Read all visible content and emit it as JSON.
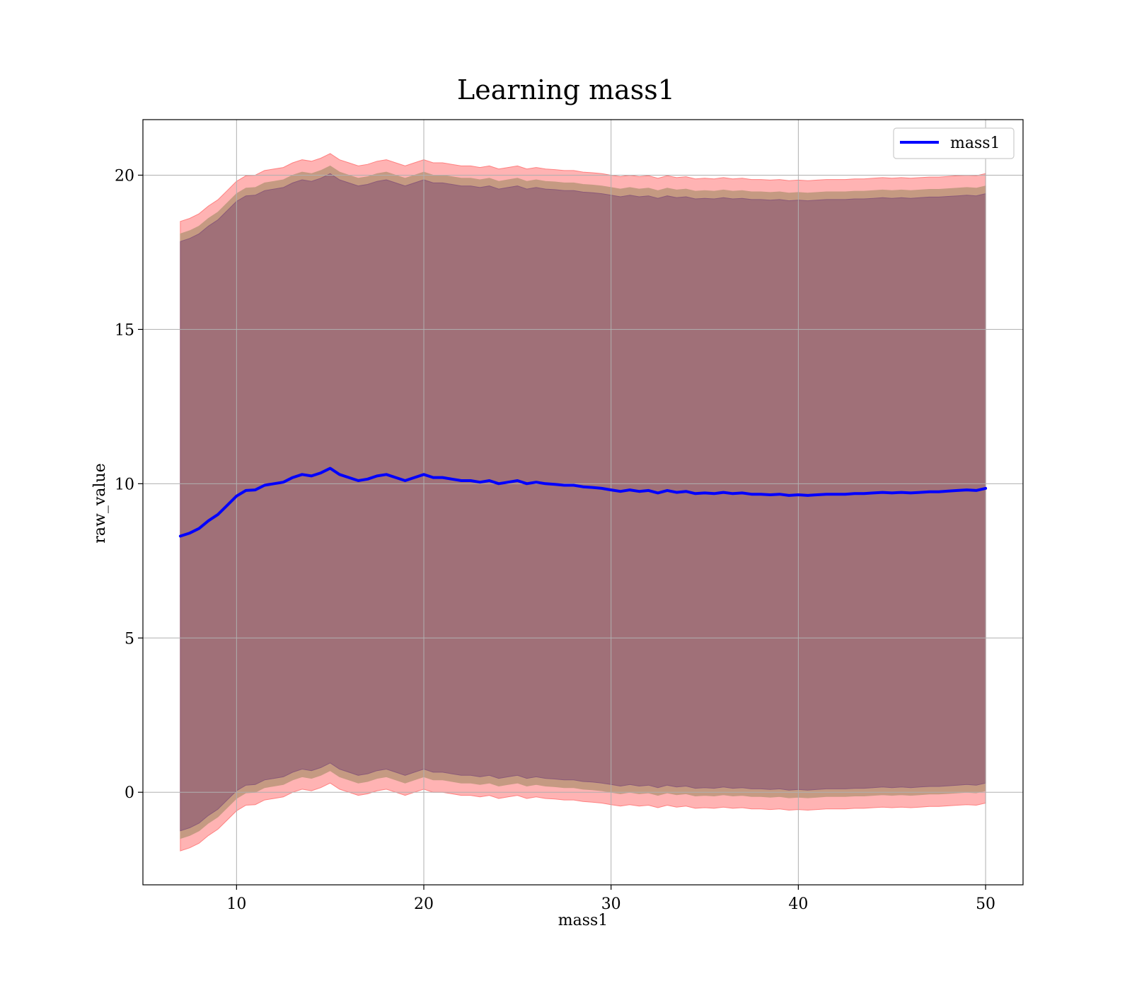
{
  "chart_data": {
    "type": "line",
    "title": "Learning mass1",
    "xlabel": "mass1",
    "ylabel": "raw_value",
    "xlim": [
      5,
      52
    ],
    "ylim": [
      -3,
      21.8
    ],
    "xticks": [
      10,
      20,
      30,
      40,
      50
    ],
    "yticks": [
      0,
      5,
      10,
      15,
      20
    ],
    "grid": true,
    "legend": {
      "position": "top-right",
      "entries": [
        "mass1"
      ]
    },
    "colors": {
      "line": "#0000ff",
      "band_outer": "#ffb3b3",
      "band_outer_edge": "#ff8080",
      "band_middle": "#c59a82",
      "band_inner": "#a07078",
      "band_inner_edge": "#8b5a78",
      "grid": "#b0b0b0"
    },
    "series": [
      {
        "name": "mass1",
        "x": [
          7,
          7.5,
          8,
          8.5,
          9,
          9.5,
          10,
          10.5,
          11,
          11.5,
          12,
          12.5,
          13,
          13.5,
          14,
          14.5,
          15,
          15.5,
          16,
          16.5,
          17,
          17.5,
          18,
          18.5,
          19,
          19.5,
          20,
          20.5,
          21,
          21.5,
          22,
          22.5,
          23,
          23.5,
          24,
          24.5,
          25,
          25.5,
          26,
          26.5,
          27,
          27.5,
          28,
          28.5,
          29,
          29.5,
          30,
          30.5,
          31,
          31.5,
          32,
          32.5,
          33,
          33.5,
          34,
          34.5,
          35,
          35.5,
          36,
          36.5,
          37,
          37.5,
          38,
          38.5,
          39,
          39.5,
          40,
          40.5,
          41,
          41.5,
          42,
          42.5,
          43,
          43.5,
          44,
          44.5,
          45,
          45.5,
          46,
          46.5,
          47,
          47.5,
          48,
          48.5,
          49,
          49.5,
          50
        ],
        "y": [
          8.3,
          8.4,
          8.55,
          8.8,
          9.0,
          9.3,
          9.6,
          9.78,
          9.8,
          9.95,
          10.0,
          10.05,
          10.2,
          10.3,
          10.25,
          10.35,
          10.5,
          10.3,
          10.2,
          10.1,
          10.15,
          10.25,
          10.3,
          10.2,
          10.1,
          10.2,
          10.3,
          10.2,
          10.2,
          10.15,
          10.1,
          10.1,
          10.05,
          10.1,
          10.0,
          10.05,
          10.1,
          10.0,
          10.05,
          10.0,
          9.98,
          9.95,
          9.95,
          9.9,
          9.88,
          9.85,
          9.8,
          9.75,
          9.8,
          9.75,
          9.78,
          9.7,
          9.78,
          9.72,
          9.75,
          9.68,
          9.7,
          9.68,
          9.72,
          9.68,
          9.7,
          9.66,
          9.66,
          9.64,
          9.66,
          9.62,
          9.64,
          9.62,
          9.64,
          9.66,
          9.66,
          9.66,
          9.68,
          9.68,
          9.7,
          9.72,
          9.7,
          9.72,
          9.7,
          9.72,
          9.74,
          9.74,
          9.76,
          9.78,
          9.8,
          9.78,
          9.85
        ]
      }
    ],
    "bands": [
      {
        "name": "outer",
        "offset_upper": 10.2,
        "offset_lower": 10.2
      },
      {
        "name": "middle",
        "offset_upper": 9.8,
        "offset_lower": 9.8
      },
      {
        "name": "inner",
        "offset_upper": 9.55,
        "offset_lower": 9.55
      }
    ]
  }
}
